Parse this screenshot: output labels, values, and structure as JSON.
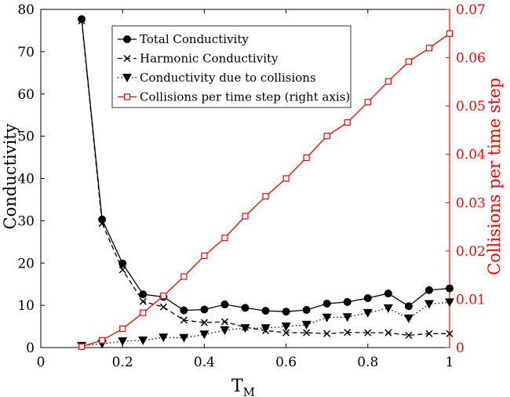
{
  "colors": {
    "primary": "#000000",
    "secondary": "#ff0000"
  },
  "chart_data": {
    "type": "line",
    "xlabel": "T",
    "xlabel_sub": "M",
    "ylabel_left": "Conductivity",
    "ylabel_right": "Collisions per time step",
    "xlim": [
      0,
      1
    ],
    "ylim_left": [
      0,
      80
    ],
    "ylim_right": [
      0,
      0.07
    ],
    "x_ticks": [
      "0",
      "0.2",
      "0.4",
      "0.6",
      "0.8",
      "1"
    ],
    "y_left_ticks": [
      "0",
      "10",
      "20",
      "30",
      "40",
      "50",
      "60",
      "70",
      "80"
    ],
    "y_right_ticks": [
      "0",
      "0.01",
      "0.02",
      "0.03",
      "0.04",
      "0.05",
      "0.06",
      "0.07"
    ],
    "x": [
      0.1,
      0.15,
      0.2,
      0.25,
      0.3,
      0.35,
      0.4,
      0.45,
      0.5,
      0.55,
      0.6,
      0.65,
      0.7,
      0.75,
      0.8,
      0.85,
      0.9,
      0.95,
      1.0
    ],
    "series": [
      {
        "name": "Total Conductivity",
        "axis": "left",
        "marker": "circle",
        "line": "solid",
        "values": [
          77.7,
          30.3,
          19.9,
          12.6,
          12.0,
          8.8,
          9.0,
          10.2,
          9.4,
          8.7,
          8.5,
          8.9,
          10.4,
          10.8,
          11.7,
          12.8,
          9.8,
          13.6,
          14.0
        ]
      },
      {
        "name": "Harmonic Conductivity",
        "axis": "left",
        "marker": "x",
        "line": "dashed",
        "values": [
          77.3,
          29.4,
          18.4,
          10.9,
          9.6,
          6.5,
          5.9,
          6.1,
          4.8,
          4.0,
          3.5,
          3.5,
          3.3,
          3.6,
          3.5,
          3.5,
          2.9,
          3.3,
          3.3
        ]
      },
      {
        "name": "Conductivity due to collisions",
        "axis": "left",
        "marker": "triangle-down",
        "line": "dotted",
        "values": [
          0.4,
          0.9,
          1.5,
          1.7,
          2.4,
          2.3,
          3.1,
          4.1,
          4.6,
          4.6,
          5.0,
          5.4,
          7.1,
          7.2,
          8.2,
          9.3,
          6.9,
          10.3,
          10.7
        ]
      },
      {
        "name": "Collisions per time step (right axis)",
        "axis": "right",
        "marker": "square",
        "line": "solid",
        "values": [
          0.0002,
          0.0015,
          0.0039,
          0.0072,
          0.0107,
          0.0147,
          0.019,
          0.0227,
          0.0272,
          0.0313,
          0.035,
          0.0393,
          0.0438,
          0.0466,
          0.0508,
          0.0551,
          0.0592,
          0.062,
          0.065
        ]
      }
    ],
    "legend_position": "top-center"
  }
}
